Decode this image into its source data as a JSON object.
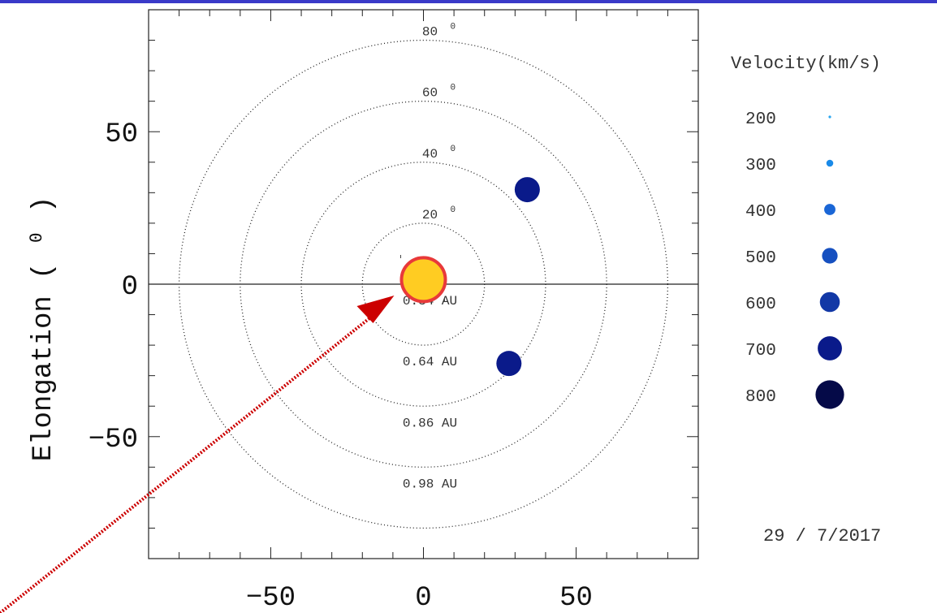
{
  "chart_data": {
    "type": "scatter",
    "title": "",
    "ylabel": "Elongation ( ⁰ )",
    "xlabel": "",
    "xlim": [
      -90,
      90
    ],
    "ylim": [
      -90,
      90
    ],
    "x_ticks": [
      {
        "value": -50,
        "label": "−50"
      },
      {
        "value": 0,
        "label": "0"
      },
      {
        "value": 50,
        "label": "50"
      }
    ],
    "y_ticks": [
      {
        "value": 50,
        "label": "50"
      },
      {
        "value": 0,
        "label": "0"
      },
      {
        "value": -50,
        "label": "−50"
      }
    ],
    "rings": [
      {
        "radius": 20,
        "angle_label": "20",
        "distance_label": "0.34 AU"
      },
      {
        "radius": 40,
        "angle_label": "40",
        "distance_label": "0.64 AU"
      },
      {
        "radius": 60,
        "angle_label": "60",
        "distance_label": "0.86 AU"
      },
      {
        "radius": 80,
        "angle_label": "80",
        "distance_label": "0.98 AU"
      }
    ],
    "sun": {
      "x": 0,
      "y": 1.5,
      "fill": "#ffcc22",
      "stroke": "#e8393a"
    },
    "points": [
      {
        "x": 34,
        "y": 31,
        "velocity": 700,
        "color": "#0a1a8a"
      },
      {
        "x": 28,
        "y": -26,
        "velocity": 700,
        "color": "#0a1a8a"
      }
    ],
    "legend": {
      "title": "Velocity(km/s)",
      "position": "right",
      "entries": [
        {
          "label": "200",
          "velocity": 200,
          "color": "#2aa6f0"
        },
        {
          "label": "300",
          "velocity": 300,
          "color": "#1a8ae8"
        },
        {
          "label": "400",
          "velocity": 400,
          "color": "#1a66d6"
        },
        {
          "label": "500",
          "velocity": 500,
          "color": "#1650c0"
        },
        {
          "label": "600",
          "velocity": 600,
          "color": "#1238a6"
        },
        {
          "label": "700",
          "velocity": 700,
          "color": "#0a1a8a"
        },
        {
          "label": "800",
          "velocity": 800,
          "color": "#050a48"
        }
      ]
    },
    "date_label": "29 / 7/2017",
    "annotation_arrow": {
      "color": "#cc0000",
      "points_to": "sun"
    },
    "grid": false
  }
}
